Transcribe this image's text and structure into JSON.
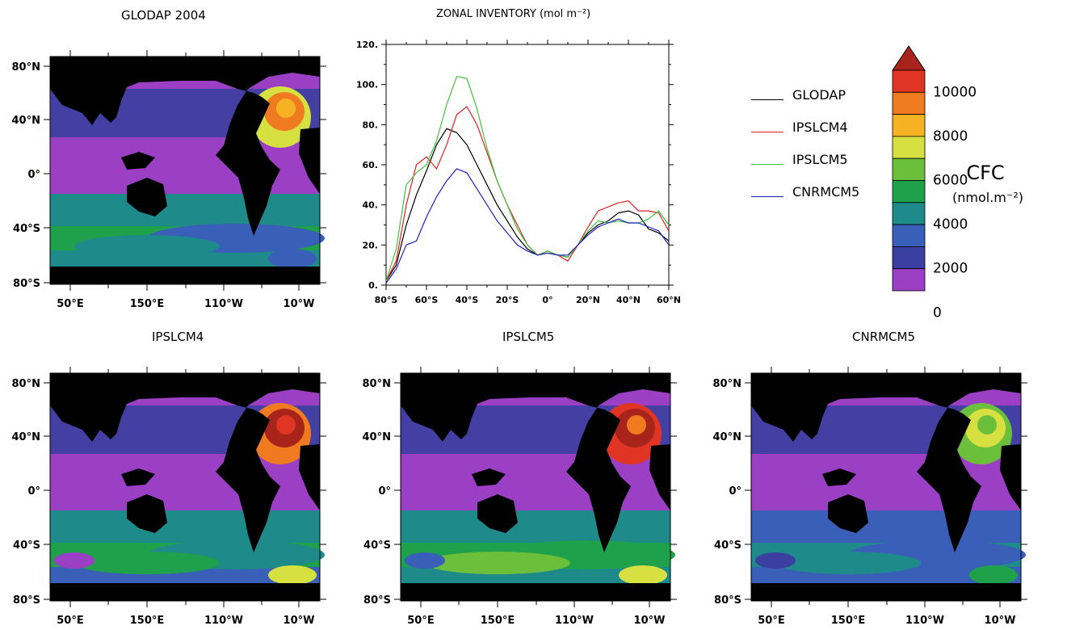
{
  "panels": [
    {
      "id": "glodap",
      "title": "GLODAP 2004",
      "lat_labels": [
        "80°N",
        "40°N",
        "0°",
        "40°S",
        "80°S"
      ],
      "lon_labels": [
        "50°E",
        "150°E",
        "110°W",
        "10°W"
      ]
    },
    {
      "id": "ipslcm4",
      "title": "IPSLCM4",
      "lat_labels": [
        "80°N",
        "40°N",
        "0°",
        "40°S",
        "80°S"
      ],
      "lon_labels": [
        "50°E",
        "150°E",
        "110°W",
        "10°W"
      ]
    },
    {
      "id": "ipslcm5",
      "title": "IPSLCM5",
      "lat_labels": [
        "80°N",
        "40°N",
        "0°",
        "40°S",
        "80°S"
      ],
      "lon_labels": [
        "50°E",
        "150°E",
        "110°W",
        "10°W"
      ]
    },
    {
      "id": "cnrmcm5",
      "title": "CNRMCM5",
      "lat_labels": [
        "80°N",
        "40°N",
        "0°",
        "40°S",
        "80°S"
      ],
      "lon_labels": [
        "50°E",
        "150°E",
        "110°W",
        "10°W"
      ]
    }
  ],
  "colorbar": {
    "title": "CFC",
    "unit": "(nmol.m⁻²)",
    "ticks": [
      "10000",
      "8000",
      "6000",
      "4000",
      "2000",
      "0"
    ],
    "colors": [
      "#9b3fc4",
      "#3a3fa0",
      "#3a5fb8",
      "#1e8a8a",
      "#1fa04a",
      "#6cbf3a",
      "#d6e040",
      "#f5b323",
      "#f07a1f",
      "#e03525",
      "#a8231a"
    ]
  },
  "chart_data": {
    "type": "line",
    "title": "ZONAL INVENTORY (mol m⁻²)",
    "x": [
      -80,
      -75,
      -70,
      -65,
      -60,
      -55,
      -50,
      -45,
      -40,
      -35,
      -30,
      -25,
      -20,
      -15,
      -10,
      -5,
      0,
      5,
      10,
      15,
      20,
      25,
      30,
      35,
      40,
      45,
      50,
      55,
      60
    ],
    "xticks": [
      "80°S",
      "60°S",
      "40°S",
      "20°S",
      "0°",
      "20°N",
      "40°N",
      "60°N"
    ],
    "xtick_values": [
      -80,
      -60,
      -40,
      -20,
      0,
      20,
      40,
      60
    ],
    "yticks": [
      "0.",
      "20.",
      "40.",
      "60.",
      "80.",
      "100.",
      "120."
    ],
    "ytick_values": [
      0,
      20,
      40,
      60,
      80,
      100,
      120
    ],
    "xlim": [
      -80,
      60
    ],
    "ylim": [
      0,
      120
    ],
    "series": [
      {
        "name": "GLODAP",
        "color": "#000000",
        "values": [
          2,
          10,
          30,
          45,
          57,
          70,
          78,
          76,
          70,
          60,
          50,
          40,
          32,
          24,
          18,
          15,
          16,
          15,
          14,
          20,
          26,
          30,
          32,
          36,
          37,
          35,
          28,
          26,
          22
        ]
      },
      {
        "name": "IPSLCM4",
        "color": "#e02020",
        "values": [
          2,
          12,
          40,
          60,
          64,
          58,
          70,
          85,
          89,
          80,
          66,
          52,
          40,
          30,
          20,
          15,
          17,
          15,
          12,
          20,
          29,
          37,
          39,
          41,
          42,
          37,
          37,
          36,
          27
        ]
      },
      {
        "name": "IPSLCM5",
        "color": "#40c040",
        "values": [
          2,
          18,
          50,
          56,
          60,
          72,
          90,
          104,
          103,
          88,
          68,
          52,
          40,
          28,
          20,
          15,
          17,
          15,
          14,
          20,
          27,
          32,
          31,
          32,
          31,
          31,
          33,
          37,
          30
        ]
      },
      {
        "name": "CNRMCM5",
        "color": "#2020c0",
        "values": [
          1,
          8,
          20,
          22,
          34,
          44,
          52,
          58,
          56,
          48,
          40,
          32,
          26,
          20,
          17,
          15,
          16,
          15,
          15,
          20,
          25,
          29,
          31,
          33,
          31,
          31,
          29,
          27,
          20
        ]
      }
    ]
  }
}
